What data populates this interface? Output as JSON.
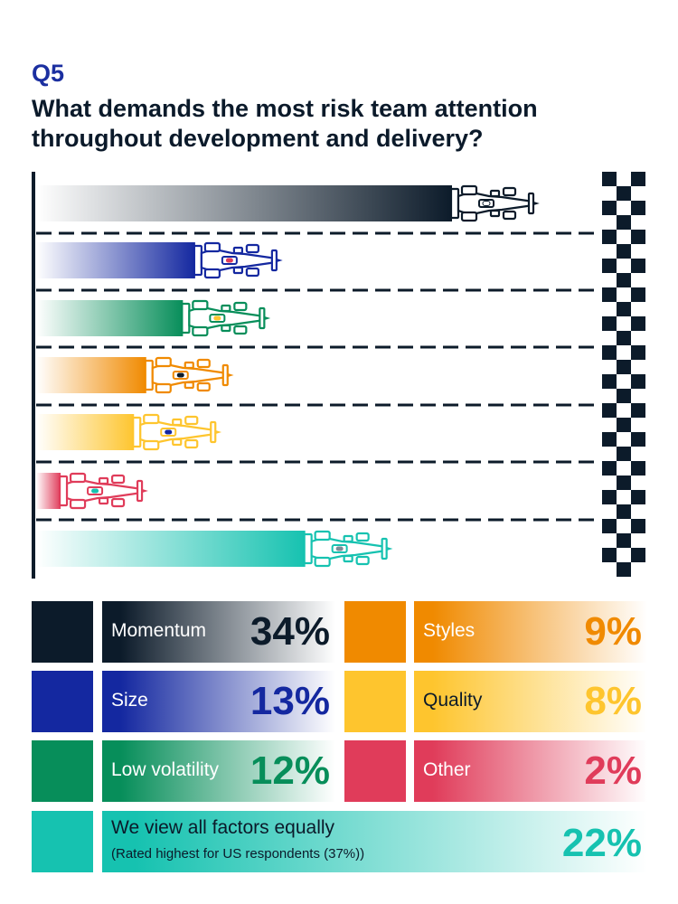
{
  "question": {
    "label": "Q5",
    "title": "What demands the most risk team attention throughout development and delivery?"
  },
  "chart_data": {
    "type": "bar",
    "orientation": "horizontal",
    "categories": [
      "Momentum",
      "Size",
      "Low volatility",
      "Styles",
      "Quality",
      "Other",
      "We view all factors equally"
    ],
    "values": [
      34,
      13,
      12,
      9,
      8,
      2,
      22
    ],
    "unit": "%",
    "xlim": [
      0,
      50
    ],
    "colors": [
      "#0c1b2a",
      "#1428a0",
      "#078e5a",
      "#f08a00",
      "#fec52e",
      "#e03c5a",
      "#16c2b0"
    ],
    "value_labels": [
      "34%",
      "13%",
      "12%",
      "9%",
      "8%",
      "2%",
      "22%"
    ],
    "note": "(Rated highest for US respondents (37%))"
  }
}
